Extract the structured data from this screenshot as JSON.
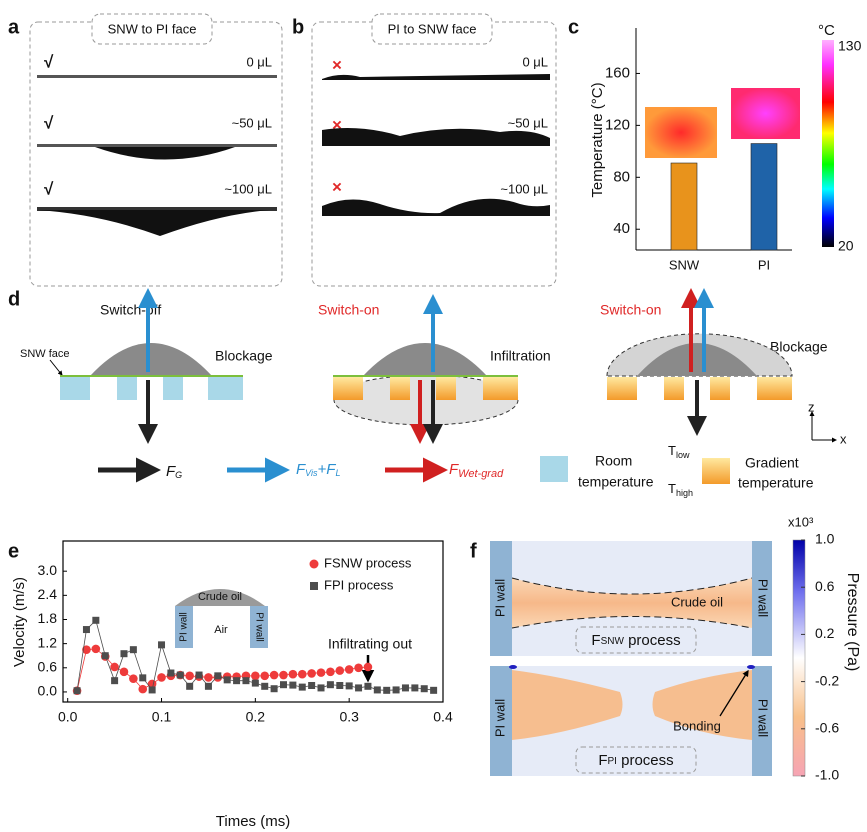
{
  "panels": {
    "a": {
      "label": "a",
      "title": "SNW to PI face",
      "rows": [
        {
          "status": "√",
          "volume": "0 μL"
        },
        {
          "status": "√",
          "volume": "~50 μL"
        },
        {
          "status": "√",
          "volume": "~100 μL"
        }
      ]
    },
    "b": {
      "label": "b",
      "title": "PI to SNW face",
      "rows": [
        {
          "status": "×",
          "volume": "0 μL"
        },
        {
          "status": "×",
          "volume": "~50 μL"
        },
        {
          "status": "×",
          "volume": "~100 μL"
        }
      ]
    },
    "c": {
      "label": "c",
      "colorbar": {
        "unit": "°C",
        "lim": [
          20,
          130
        ],
        "ticks": [
          20,
          130
        ]
      }
    },
    "d": {
      "label": "d",
      "schemes": [
        {
          "state": "Switch-off",
          "result": "Blockage",
          "face": "SNW face"
        },
        {
          "state": "Switch-on",
          "result": "Infiltration"
        },
        {
          "state": "Switch-on",
          "result": "Blockage"
        }
      ],
      "axes": {
        "z": "z",
        "x": "x"
      },
      "legend": {
        "gravity": [
          "F",
          "G"
        ],
        "viscous": [
          "F",
          "Vis",
          "+F",
          "L"
        ],
        "wetting": [
          "F",
          "Wet-grad"
        ],
        "room": [
          "Room",
          "temperature"
        ],
        "t_low": [
          "T",
          "low"
        ],
        "t_high": [
          "T",
          "high"
        ],
        "gradient": [
          "Gradient",
          "temperature"
        ]
      }
    },
    "e": {
      "label": "e"
    },
    "f": {
      "label": "f",
      "walls": [
        "PI wall",
        "PI wall",
        "PI wall",
        "PI wall"
      ],
      "oil": "Crude oil",
      "bonding": "Bonding",
      "top_process": [
        "F",
        "SNW",
        " process"
      ],
      "bottom_process": [
        "F",
        "PI",
        " process"
      ],
      "colorbar": {
        "multiplier": "x10³",
        "label": "Pressure (Pa)",
        "lim": [
          -1,
          1
        ],
        "ticks": [
          {
            "value": 1,
            "label": "1.0"
          },
          0.6,
          0.2,
          -0.2,
          -0.6,
          {
            "value": -1,
            "label": "-1.0"
          }
        ]
      }
    }
  },
  "chart_data": [
    {
      "type": "bar",
      "y_label": "Temperature (°C)",
      "categories": [
        "SNW",
        "PI"
      ],
      "values": [
        91,
        106
      ],
      "colors": [
        "#e8931c",
        "#1f63a8"
      ],
      "ylim": [
        24,
        195
      ],
      "yticks": [
        40,
        80,
        120,
        160
      ]
    },
    {
      "type": "line",
      "x_label": "Times (ms)",
      "y_label": "Velocity (m/s)",
      "xlim": [
        -0.005,
        0.4
      ],
      "xticks": [
        {
          "value": 0,
          "label": "0.0"
        },
        0.1,
        0.2,
        0.3,
        0.4
      ],
      "ylim": [
        -0.25,
        3.75
      ],
      "yticks": [
        {
          "value": 0,
          "label": "0.0"
        },
        0.6,
        1.2,
        1.8,
        2.4,
        {
          "value": 3,
          "label": "3.0"
        }
      ],
      "annotation": "Infiltrating out",
      "inset": {
        "oil": "Crude oil",
        "wall_left": "PI wall",
        "wall_right": "PI wall",
        "air": "Air"
      },
      "series": [
        {
          "name": "FSNW process",
          "color": "#ee3b3b",
          "marker": "circle",
          "x": [
            0.01,
            0.02,
            0.03,
            0.04,
            0.05,
            0.06,
            0.07,
            0.08,
            0.09,
            0.1,
            0.11,
            0.12,
            0.13,
            0.14,
            0.15,
            0.16,
            0.17,
            0.18,
            0.19,
            0.2,
            0.21,
            0.22,
            0.23,
            0.24,
            0.25,
            0.26,
            0.27,
            0.28,
            0.29,
            0.3,
            0.31,
            0.32
          ],
          "values": [
            0.03,
            1.05,
            1.07,
            0.88,
            0.62,
            0.5,
            0.33,
            0.07,
            0.2,
            0.36,
            0.4,
            0.42,
            0.4,
            0.38,
            0.36,
            0.36,
            0.38,
            0.38,
            0.4,
            0.4,
            0.4,
            0.42,
            0.42,
            0.44,
            0.44,
            0.46,
            0.48,
            0.5,
            0.53,
            0.56,
            0.6,
            0.62
          ]
        },
        {
          "name": "FPI process",
          "color": "#4d4d4d",
          "marker": "square",
          "x": [
            0.01,
            0.02,
            0.03,
            0.04,
            0.05,
            0.06,
            0.07,
            0.08,
            0.09,
            0.1,
            0.11,
            0.12,
            0.13,
            0.14,
            0.15,
            0.16,
            0.17,
            0.18,
            0.19,
            0.2,
            0.21,
            0.22,
            0.23,
            0.24,
            0.25,
            0.26,
            0.27,
            0.28,
            0.29,
            0.3,
            0.31,
            0.32,
            0.33,
            0.34,
            0.35,
            0.36,
            0.37,
            0.38,
            0.39
          ],
          "values": [
            0.03,
            1.55,
            1.78,
            0.9,
            0.28,
            0.95,
            1.05,
            0.35,
            0.05,
            1.17,
            0.47,
            0.42,
            0.14,
            0.42,
            0.14,
            0.4,
            0.3,
            0.28,
            0.28,
            0.22,
            0.14,
            0.08,
            0.18,
            0.17,
            0.12,
            0.16,
            0.1,
            0.18,
            0.16,
            0.15,
            0.1,
            0.14,
            0.05,
            0.04,
            0.05,
            0.1,
            0.1,
            0.08,
            0.04
          ]
        }
      ]
    }
  ]
}
